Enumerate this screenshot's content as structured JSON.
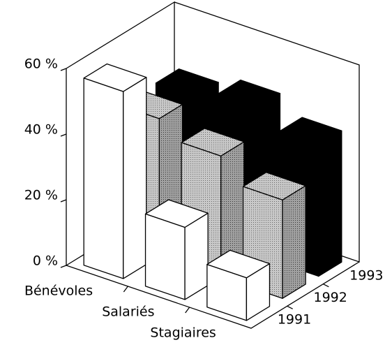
{
  "chart_data": {
    "type": "bar3d",
    "categories": [
      "Bénévoles",
      "Salariés",
      "Stagiaires"
    ],
    "series": [
      {
        "name": "1991",
        "color": "#ffffff",
        "values": [
          57,
          22,
          13
        ]
      },
      {
        "name": "1992",
        "color": "#b0b0b0",
        "values": [
          42,
          37,
          30
        ]
      },
      {
        "name": "1993",
        "color": "#000000",
        "values": [
          42,
          45,
          40
        ]
      }
    ],
    "ylim": [
      0,
      60
    ],
    "yticks": [
      {
        "value": 0,
        "label": "0 %"
      },
      {
        "value": 20,
        "label": "20 %"
      },
      {
        "value": 40,
        "label": "40 %"
      },
      {
        "value": 60,
        "label": "60 %"
      }
    ]
  }
}
